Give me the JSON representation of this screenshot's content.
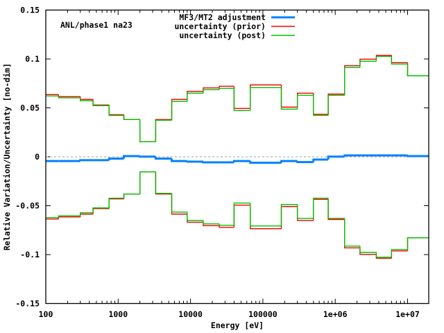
{
  "chart_data": {
    "type": "line",
    "subtype": "step-histogram",
    "annotation": "ANL/phase1 na23",
    "xlabel": "Energy [eV]",
    "ylabel": "Relative Variation/Uncertainty [no-dim]",
    "xscale": "log",
    "xlim": [
      100,
      20000000
    ],
    "ylim": [
      -0.15,
      0.15
    ],
    "xticks": [
      100,
      1000,
      10000,
      100000,
      1000000,
      10000000
    ],
    "xtick_labels": [
      "100",
      "1000",
      "10000",
      "100000",
      "1e+06",
      "1e+07"
    ],
    "yticks": [
      0.15,
      0.1,
      0.05,
      0,
      -0.05,
      -0.1,
      -0.15
    ],
    "ytick_labels": [
      "0.15",
      "0.1",
      "0.05",
      "0",
      "-0.05",
      "-0.1",
      "-0.15"
    ],
    "grid": false,
    "legend_position": "top-center",
    "bin_edges": [
      100,
      150,
      300,
      450,
      750,
      1200,
      2000,
      3300,
      5500,
      9000,
      15000,
      25000,
      40000,
      67000,
      180000,
      300000,
      500000,
      800000,
      1350000,
      2200000,
      3700000,
      6000000,
      10000000,
      20000000
    ],
    "series": [
      {
        "name": "MF3/MT2 adjustment",
        "color": "#0080ff",
        "mirrored": false,
        "values": [
          -0.0043,
          -0.0043,
          -0.0035,
          -0.0035,
          -0.0019,
          0.0007,
          0.0002,
          -0.0019,
          -0.0043,
          -0.005,
          -0.0057,
          -0.0057,
          -0.0043,
          -0.0061,
          -0.0043,
          -0.0054,
          -0.0028,
          0.0002,
          0.0014,
          0.0014,
          0.0014,
          0.0014,
          0.0007
        ]
      },
      {
        "name": "uncertainty (prior)",
        "color": "#ff0000",
        "mirrored": true,
        "values": [
          0.0636,
          0.0615,
          0.0586,
          0.053,
          0.043,
          0.0381,
          0.0154,
          0.0381,
          0.0586,
          0.0669,
          0.0704,
          0.0721,
          0.0494,
          0.0735,
          0.0508,
          0.065,
          0.0435,
          0.0641,
          0.0931,
          0.0998,
          0.1038,
          0.0962,
          0.0828
        ]
      },
      {
        "name": "uncertainty (post)",
        "color": "#00c000",
        "mirrored": true,
        "values": [
          0.0622,
          0.0603,
          0.0572,
          0.0523,
          0.0423,
          0.0381,
          0.0154,
          0.0374,
          0.0565,
          0.065,
          0.0686,
          0.07,
          0.0473,
          0.0707,
          0.0487,
          0.0629,
          0.0423,
          0.0629,
          0.0913,
          0.0977,
          0.1026,
          0.0948,
          0.0828
        ]
      }
    ]
  }
}
